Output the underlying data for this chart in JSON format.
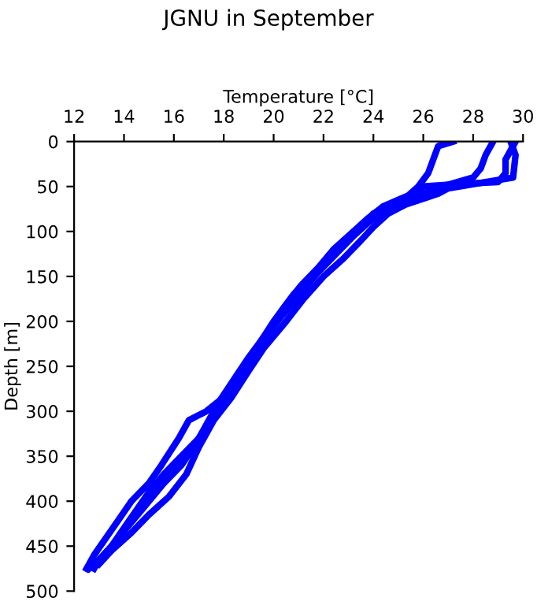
{
  "chart_data": {
    "type": "line",
    "title": "JGNU in September",
    "xlabel": "Temperature [°C]",
    "ylabel": "Depth [m]",
    "xlim": [
      12,
      30
    ],
    "xticks": [
      12,
      14,
      16,
      18,
      20,
      22,
      24,
      26,
      28,
      30
    ],
    "ylim": [
      500,
      0
    ],
    "yticks": [
      0,
      50,
      100,
      150,
      200,
      250,
      300,
      350,
      400,
      450,
      500
    ],
    "grid": false,
    "marker": "none",
    "line_style": "solid",
    "series": [
      {
        "color": "#0000ff",
        "x": [
          29.7,
          29.5,
          29.3,
          29.3,
          29.0,
          27.5,
          26.0,
          25.5,
          24.8,
          24.0,
          23.5,
          23.0,
          22.2,
          21.5,
          20.8,
          20.0,
          19.3,
          18.6,
          18.0,
          17.5,
          17.0,
          16.3,
          15.6,
          15.0,
          14.5,
          14.0,
          13.5,
          13.0,
          12.8
        ],
        "values": [
          0,
          10,
          20,
          35,
          45,
          47,
          50,
          60,
          70,
          80,
          95,
          110,
          130,
          150,
          170,
          200,
          230,
          260,
          290,
          310,
          330,
          350,
          370,
          390,
          410,
          430,
          450,
          465,
          475
        ]
      },
      {
        "color": "#0000ff",
        "x": [
          28.8,
          28.5,
          28.3,
          28.0,
          27.0,
          26.3,
          25.3,
          24.5,
          23.8,
          23.2,
          22.5,
          21.8,
          21.2,
          20.3,
          19.6,
          18.8,
          18.2,
          17.3,
          16.6,
          16.2,
          15.5,
          15.0,
          14.3,
          13.8,
          13.3,
          12.8,
          12.5
        ],
        "values": [
          0,
          15,
          30,
          40,
          48,
          55,
          65,
          75,
          90,
          105,
          125,
          145,
          165,
          195,
          220,
          250,
          280,
          300,
          310,
          330,
          360,
          380,
          400,
          420,
          440,
          460,
          475
        ]
      },
      {
        "color": "#0000ff",
        "x": [
          27.2,
          26.6,
          26.4,
          26.2,
          25.8,
          25.4,
          24.4,
          23.8,
          23.2,
          22.4,
          21.8,
          21.1,
          20.4,
          19.8,
          19.0,
          18.4,
          17.8,
          17.2,
          16.8,
          16.3,
          15.6,
          15.0,
          14.4,
          13.8,
          13.2,
          12.6
        ],
        "values": [
          0,
          5,
          20,
          35,
          50,
          60,
          72,
          85,
          100,
          120,
          140,
          160,
          185,
          210,
          240,
          265,
          290,
          320,
          340,
          360,
          380,
          400,
          420,
          440,
          460,
          475
        ]
      },
      {
        "color": "#0000ff",
        "x": [
          29.5,
          29.7,
          29.6,
          28.5,
          27.0,
          26.6,
          25.3,
          24.6,
          24.0,
          23.5,
          22.8,
          22.0,
          21.2,
          20.5,
          19.6,
          19.0,
          18.3,
          17.6,
          17.0,
          16.5,
          15.8,
          15.0,
          14.3,
          13.5,
          13.0
        ],
        "values": [
          0,
          15,
          40,
          45,
          52,
          58,
          70,
          80,
          95,
          110,
          130,
          150,
          175,
          200,
          230,
          255,
          285,
          310,
          340,
          370,
          395,
          415,
          435,
          455,
          470
        ]
      }
    ]
  }
}
